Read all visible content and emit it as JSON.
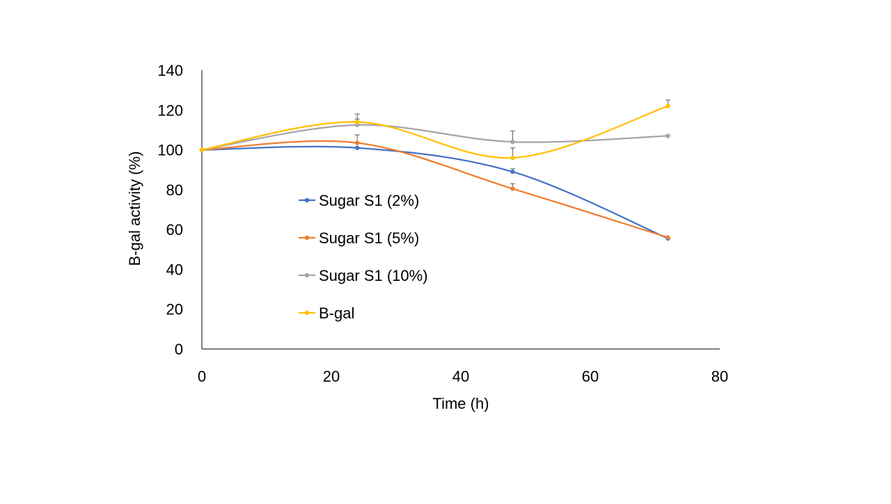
{
  "chart_data": {
    "type": "line",
    "title": "",
    "xlabel": "Time (h)",
    "ylabel": "B-gal activity (%)",
    "xlim": [
      0,
      80
    ],
    "ylim": [
      0,
      140
    ],
    "xticks": [
      0,
      20,
      40,
      60,
      80
    ],
    "yticks": [
      0,
      20,
      40,
      60,
      80,
      100,
      120,
      140
    ],
    "grid": false,
    "smoothed": true,
    "legend_position": "inside-left",
    "x": [
      0,
      24,
      48,
      72
    ],
    "series": [
      {
        "name": "Sugar S1 (2%)",
        "color": "#4472C4",
        "values": [
          100,
          101,
          89,
          55.5
        ],
        "errors": [
          0,
          0,
          1.5,
          0
        ]
      },
      {
        "name": "Sugar S1 (5%)",
        "color": "#ED7D31",
        "values": [
          100,
          103.5,
          80.5,
          56
        ],
        "errors": [
          0,
          4,
          2.5,
          0
        ]
      },
      {
        "name": "Sugar S1 (10%)",
        "color": "#A5A5A5",
        "values": [
          100,
          112.5,
          104,
          107
        ],
        "errors": [
          0,
          5.5,
          5.5,
          0.5
        ]
      },
      {
        "name": "B-gal",
        "color": "#FFC000",
        "values": [
          100,
          114,
          96,
          122
        ],
        "errors": [
          0,
          1.5,
          5,
          3
        ]
      }
    ]
  }
}
